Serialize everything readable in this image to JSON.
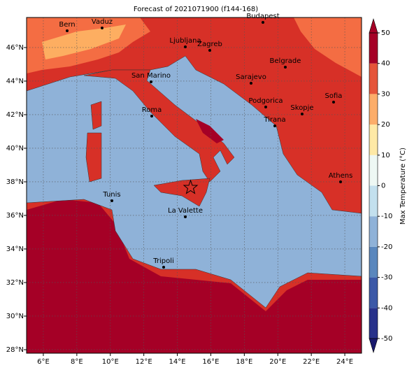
{
  "title": "Forecast of 2021071900 (f144-168)",
  "map": {
    "xlim": [
      5,
      25
    ],
    "ylim": [
      27.79,
      47.79
    ],
    "xticks": [
      {
        "value": 6,
        "label": "6°E"
      },
      {
        "value": 8,
        "label": "8°E"
      },
      {
        "value": 10,
        "label": "10°E"
      },
      {
        "value": 12,
        "label": "12°E"
      },
      {
        "value": 14,
        "label": "14°E"
      },
      {
        "value": 16,
        "label": "16°E"
      },
      {
        "value": 18,
        "label": "18°E"
      },
      {
        "value": 20,
        "label": "20°E"
      },
      {
        "value": 22,
        "label": "22°E"
      },
      {
        "value": 24,
        "label": "24°E"
      }
    ],
    "yticks": [
      {
        "value": 28,
        "label": "28°N"
      },
      {
        "value": 30,
        "label": "30°N"
      },
      {
        "value": 32,
        "label": "32°N"
      },
      {
        "value": 34,
        "label": "34°N"
      },
      {
        "value": 36,
        "label": "36°N"
      },
      {
        "value": 38,
        "label": "38°N"
      },
      {
        "value": 40,
        "label": "40°N"
      },
      {
        "value": 42,
        "label": "42°N"
      },
      {
        "value": 44,
        "label": "44°N"
      },
      {
        "value": 46,
        "label": "46°N"
      }
    ],
    "cities": [
      "Bern",
      "Vaduz",
      "Budapest",
      "Ljubljana",
      "Zagreb",
      "Belgrade",
      "San Marino",
      "Sarajevo",
      "Roma",
      "Podgorica",
      "Sofia",
      "Skopje",
      "Tirana",
      "Athens",
      "Tunis",
      "La Valette",
      "Tripoli"
    ]
  },
  "colorbar": {
    "label": "Max Temperature (°C)",
    "lim": [
      -50,
      50
    ],
    "ticks": [
      -50,
      -40,
      -30,
      -20,
      -10,
      0,
      10,
      20,
      30,
      40,
      50
    ],
    "colors": [
      "#27318a",
      "#3b58a7",
      "#5a87bd",
      "#8fb2d8",
      "#c3e0ee",
      "#eef8f4",
      "#fee9a6",
      "#fcad6a",
      "#e5553a",
      "#a50026"
    ]
  }
}
